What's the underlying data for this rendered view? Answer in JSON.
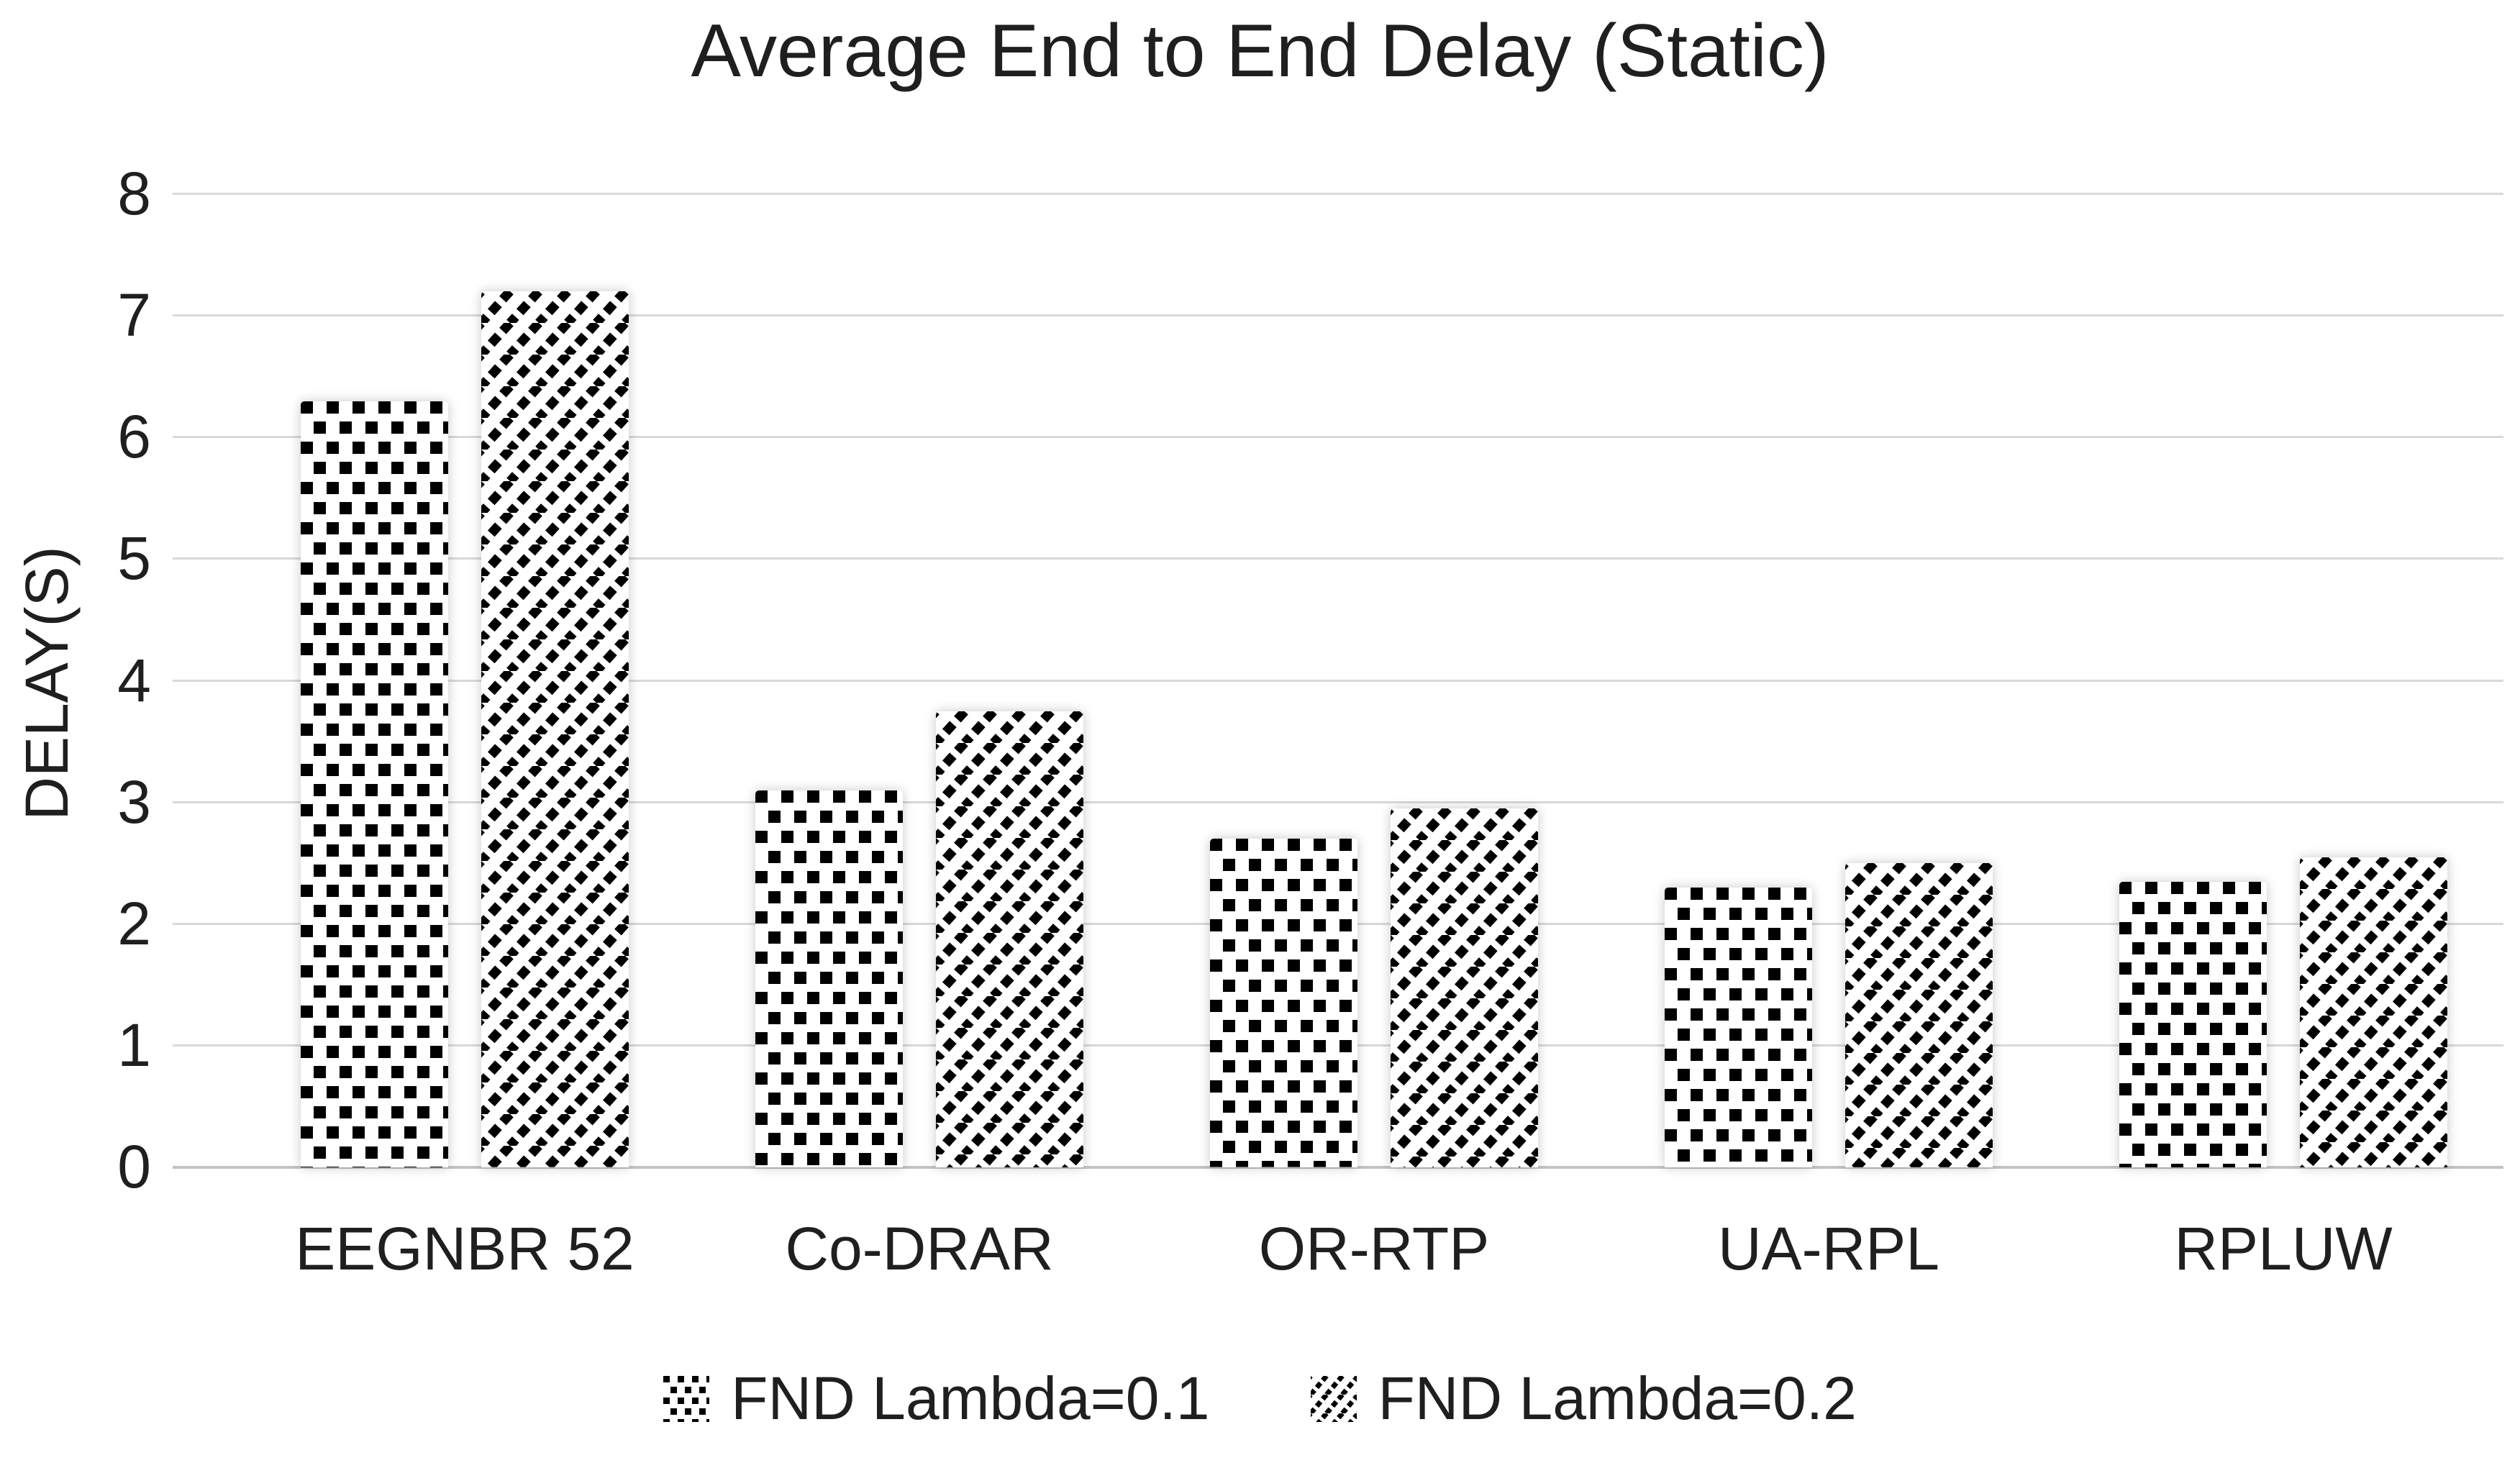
{
  "page": {
    "background": "#ffffff",
    "text_color": "#1f1f1f",
    "gridline_color": "#d9d9d9",
    "axis_line_color": "#c3c3c3",
    "pattern_color": "#000000",
    "bar_fill": "#ffffff"
  },
  "chart_data": {
    "type": "bar",
    "title": "Average End to End Delay (Static)",
    "xlabel": "",
    "ylabel": "DELAY(S)",
    "categories": [
      "EEGNBR 52",
      "Co-DRAR",
      "OR-RTP",
      "UA-RPL",
      "RPLUW"
    ],
    "series": [
      {
        "name": "FND Lambda=0.1",
        "pattern": "checker",
        "values": [
          6.3,
          3.1,
          2.7,
          2.3,
          2.35
        ]
      },
      {
        "name": "FND Lambda=0.2",
        "pattern": "diagonal-stripe",
        "values": [
          7.2,
          3.75,
          2.95,
          2.5,
          2.55
        ]
      }
    ],
    "ylim": [
      0,
      8
    ],
    "yticks": [
      0,
      1,
      2,
      3,
      4,
      5,
      6,
      7,
      8
    ],
    "grid": true,
    "legend_position": "bottom"
  }
}
